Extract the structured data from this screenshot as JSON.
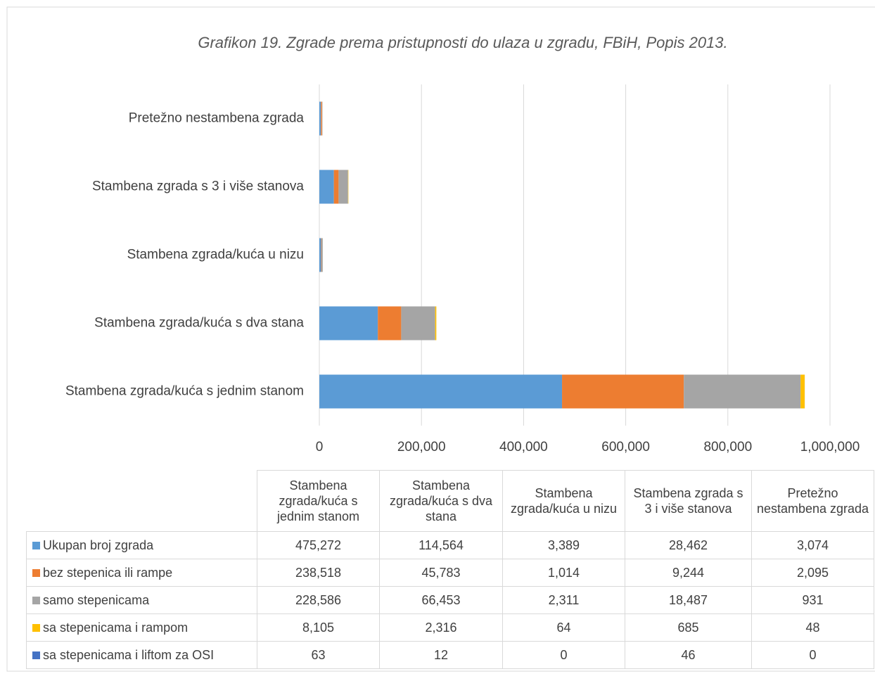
{
  "chart_data": {
    "type": "stacked_bar_horizontal",
    "title": "Grafikon 19. Zgrade prema pristupnosti do ulaza u zgradu, FBiH, Popis 2013.",
    "categories": [
      "Stambena zgrada/kuća s jednim stanom",
      "Stambena zgrada/kuća s dva stana",
      "Stambena zgrada/kuća u nizu",
      "Stambena zgrada s 3 i više stanova",
      "Pretežno nestambena zgrada"
    ],
    "series": [
      {
        "name": "Ukupan broj zgrada",
        "color": "#5b9bd5",
        "values": [
          475272,
          114564,
          3389,
          28462,
          3074
        ],
        "value_labels": [
          "475,272",
          "114,564",
          "3,389",
          "28,462",
          "3,074"
        ]
      },
      {
        "name": "bez stepenica ili rampe",
        "color": "#ed7d31",
        "values": [
          238518,
          45783,
          1014,
          9244,
          2095
        ],
        "value_labels": [
          "238,518",
          "45,783",
          "1,014",
          "9,244",
          "2,095"
        ]
      },
      {
        "name": "samo stepenicama",
        "color": "#a5a5a5",
        "values": [
          228586,
          66453,
          2311,
          18487,
          931
        ],
        "value_labels": [
          "228,586",
          "66,453",
          "2,311",
          "18,487",
          "931"
        ]
      },
      {
        "name": "sa stepenicama i rampom",
        "color": "#ffc000",
        "values": [
          8105,
          2316,
          64,
          685,
          48
        ],
        "value_labels": [
          "8,105",
          "2,316",
          "64",
          "685",
          "48"
        ]
      },
      {
        "name": "sa stepenicama i liftom za OSI",
        "color": "#4472c4",
        "values": [
          63,
          12,
          0,
          46,
          0
        ],
        "value_labels": [
          "63",
          "12",
          "0",
          "46",
          "0"
        ]
      }
    ],
    "xlim": [
      0,
      1000000
    ],
    "xticks": [
      0,
      {
        "value": 200000,
        "label": "200,000"
      },
      {
        "value": 400000,
        "label": "400,000"
      },
      {
        "value": 600000,
        "label": "600,000"
      },
      {
        "value": 800000,
        "label": "800,000"
      },
      {
        "value": 1000000,
        "label": "1,000,000"
      }
    ],
    "grid": true,
    "data_table": true
  }
}
